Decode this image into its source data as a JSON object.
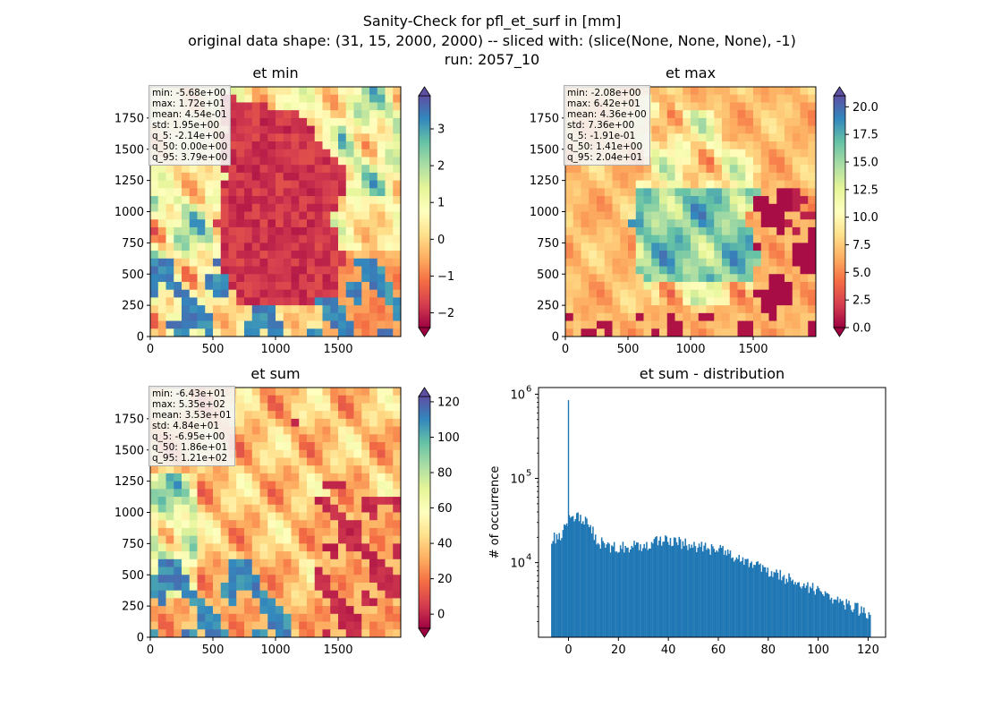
{
  "figure": {
    "title_lines": [
      "Sanity-Check for pfl_et_surf in [mm]",
      "original data shape: (31, 15, 2000, 2000) -- sliced with: (slice(None, None, None), -1)",
      "run: 2057_10"
    ]
  },
  "colors": {
    "hist_bar": "#1f77b4",
    "spectral": [
      "#9e0142",
      "#d53e4f",
      "#f46d43",
      "#fdae61",
      "#fee08b",
      "#ffffbf",
      "#e6f598",
      "#abdda4",
      "#66c2a5",
      "#3288bd",
      "#5e4fa2"
    ]
  },
  "chart_data": [
    {
      "type": "heatmap",
      "title": "et min",
      "colormap": "Spectral",
      "xticks": [
        0,
        500,
        1000,
        1500
      ],
      "yticks": [
        0,
        250,
        500,
        750,
        1000,
        1250,
        1500,
        1750
      ],
      "xlim": [
        0,
        2000
      ],
      "ylim": [
        0,
        2000
      ],
      "colorbar": {
        "range": [
          -2.4,
          3.9
        ],
        "ticks": [
          -2,
          -1,
          0,
          1,
          2,
          3
        ],
        "tick_labels": [
          "−2",
          "−1",
          "0",
          "1",
          "2",
          "3"
        ],
        "extend": "both"
      },
      "stats": [
        "min: -5.68e+00",
        "max: 1.72e+01",
        "mean: 4.54e-01",
        "std: 1.95e+00",
        "q_5: -2.14e+00",
        "q_50: 0.00e+00",
        "q_95: 3.79e+00"
      ]
    },
    {
      "type": "heatmap",
      "title": "et max",
      "colormap": "Spectral",
      "xticks": [
        0,
        500,
        1000,
        1500
      ],
      "yticks": [
        0,
        250,
        500,
        750,
        1000,
        1250,
        1500,
        1750
      ],
      "xlim": [
        0,
        2000
      ],
      "ylim": [
        0,
        2000
      ],
      "colorbar": {
        "range": [
          0,
          21
        ],
        "ticks": [
          0.0,
          2.5,
          5.0,
          7.5,
          10.0,
          12.5,
          15.0,
          17.5,
          20.0
        ],
        "tick_labels": [
          "0.0",
          "2.5",
          "5.0",
          "7.5",
          "10.0",
          "12.5",
          "15.0",
          "17.5",
          "20.0"
        ],
        "extend": "both"
      },
      "stats": [
        "min: -2.08e+00",
        "max: 6.42e+01",
        "mean: 4.36e+00",
        "std: 7.36e+00",
        "q_5: -1.91e-01",
        "q_50: 1.41e+00",
        "q_95: 2.04e+01"
      ]
    },
    {
      "type": "heatmap",
      "title": "et sum",
      "colormap": "Spectral",
      "xticks": [
        0,
        500,
        1000,
        1500
      ],
      "yticks": [
        0,
        250,
        500,
        750,
        1000,
        1250,
        1500,
        1750
      ],
      "xlim": [
        0,
        2000
      ],
      "ylim": [
        0,
        2000
      ],
      "colorbar": {
        "range": [
          -8,
          123
        ],
        "ticks": [
          0,
          20,
          40,
          60,
          80,
          100,
          120
        ],
        "tick_labels": [
          "0",
          "20",
          "40",
          "60",
          "80",
          "100",
          "120"
        ],
        "extend": "both"
      },
      "stats": [
        "min: -6.43e+01",
        "max: 5.35e+02",
        "mean: 3.53e+01",
        "std: 4.84e+01",
        "q_5: -6.95e+00",
        "q_50: 1.86e+01",
        "q_95: 1.21e+02"
      ]
    },
    {
      "type": "bar",
      "title": "et sum - distribution",
      "xlabel": "",
      "ylabel": "# of occurrence",
      "yscale": "log",
      "xlim": [
        -12,
        127
      ],
      "ylim": [
        1300,
        1200000
      ],
      "xticks": [
        0,
        20,
        40,
        60,
        80,
        100,
        120
      ],
      "yticks": [
        10000,
        100000,
        1000000
      ],
      "ytick_exponents": [
        "4",
        "5",
        "6"
      ],
      "ytick_base": "10",
      "bin_start": -6.95,
      "bin_width": 0.5,
      "spike": {
        "x": 0,
        "value": 850000
      },
      "anchors": [
        [
          -6.9,
          19000
        ],
        [
          -3,
          22000
        ],
        [
          -1,
          30000
        ],
        [
          1,
          33000
        ],
        [
          3,
          35000
        ],
        [
          6,
          33000
        ],
        [
          8,
          28000
        ],
        [
          11,
          19000
        ],
        [
          14,
          16500
        ],
        [
          20,
          15000
        ],
        [
          30,
          16000
        ],
        [
          36,
          18000
        ],
        [
          40,
          19000
        ],
        [
          45,
          17000
        ],
        [
          50,
          15500
        ],
        [
          55,
          15000
        ],
        [
          60,
          14000
        ],
        [
          65,
          12500
        ],
        [
          70,
          10500
        ],
        [
          75,
          9500
        ],
        [
          80,
          8000
        ],
        [
          85,
          7000
        ],
        [
          90,
          6300
        ],
        [
          95,
          5400
        ],
        [
          100,
          4600
        ],
        [
          105,
          3800
        ],
        [
          110,
          3400
        ],
        [
          115,
          2900
        ],
        [
          118,
          2600
        ],
        [
          120.5,
          2300
        ]
      ]
    }
  ]
}
